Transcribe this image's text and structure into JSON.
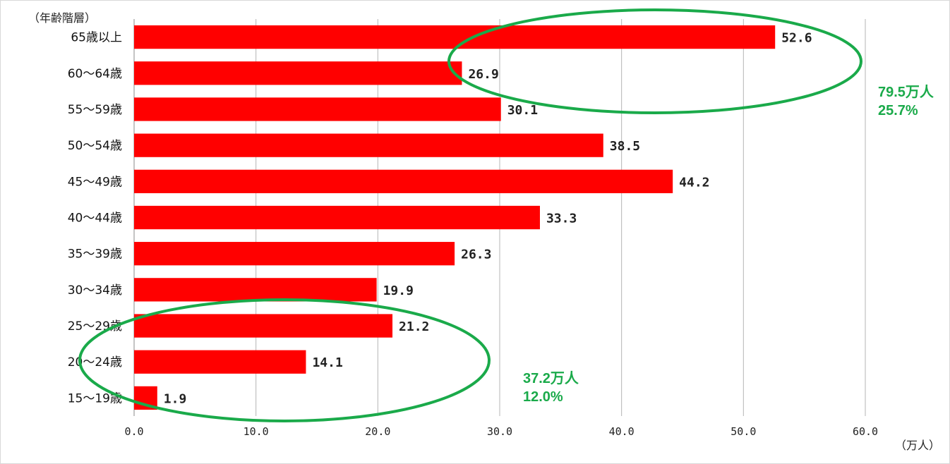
{
  "chart_data": {
    "type": "bar",
    "orientation": "horizontal",
    "ylabel": "（年齢階層）",
    "xlabel": "（万人）",
    "categories": [
      "65歳以上",
      "60～64歳",
      "55～59歳",
      "50～54歳",
      "45～49歳",
      "40～44歳",
      "35～39歳",
      "30～34歳",
      "25～29歳",
      "20～24歳",
      "15～19歳"
    ],
    "values": [
      52.6,
      26.9,
      30.1,
      38.5,
      44.2,
      33.3,
      26.3,
      19.9,
      21.2,
      14.1,
      1.9
    ],
    "value_labels": [
      "52.6",
      "26.9",
      "30.1",
      "38.5",
      "44.2",
      "33.3",
      "26.3",
      "19.9",
      "21.2",
      "14.1",
      "1.9"
    ],
    "xlim": [
      0,
      60
    ],
    "xticks": [
      "0.0",
      "10.0",
      "20.0",
      "30.0",
      "40.0",
      "50.0",
      "60.0"
    ],
    "grid": "vertical",
    "bar_color": "#ff0000",
    "annotations": [
      {
        "name": "older-group",
        "line1": "79.5万人",
        "line2": "25.7%",
        "color": "#1aaa4a"
      },
      {
        "name": "younger-group",
        "line1": "37.2万人",
        "line2": "12.0%",
        "color": "#1aaa4a"
      }
    ]
  }
}
